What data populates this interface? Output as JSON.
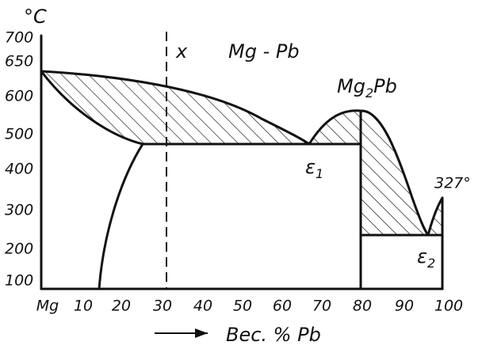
{
  "title": "Mg - Pb",
  "y_axis": {
    "unit": "°C",
    "ticks": [
      "700",
      "650",
      "600",
      "500",
      "400",
      "300",
      "200",
      "100"
    ]
  },
  "x_axis": {
    "title": "Вес. % Pb",
    "ticks": [
      "Mg",
      "10",
      "20",
      "30",
      "40",
      "50",
      "60",
      "70",
      "80",
      "90",
      "100"
    ]
  },
  "labels": {
    "composition": "x",
    "compound": [
      "Mg",
      "2",
      "Pb"
    ],
    "eutectic_1": [
      "ε",
      "1"
    ],
    "eutectic_2": [
      "ε",
      "2"
    ],
    "pb_melting": "327°"
  }
}
